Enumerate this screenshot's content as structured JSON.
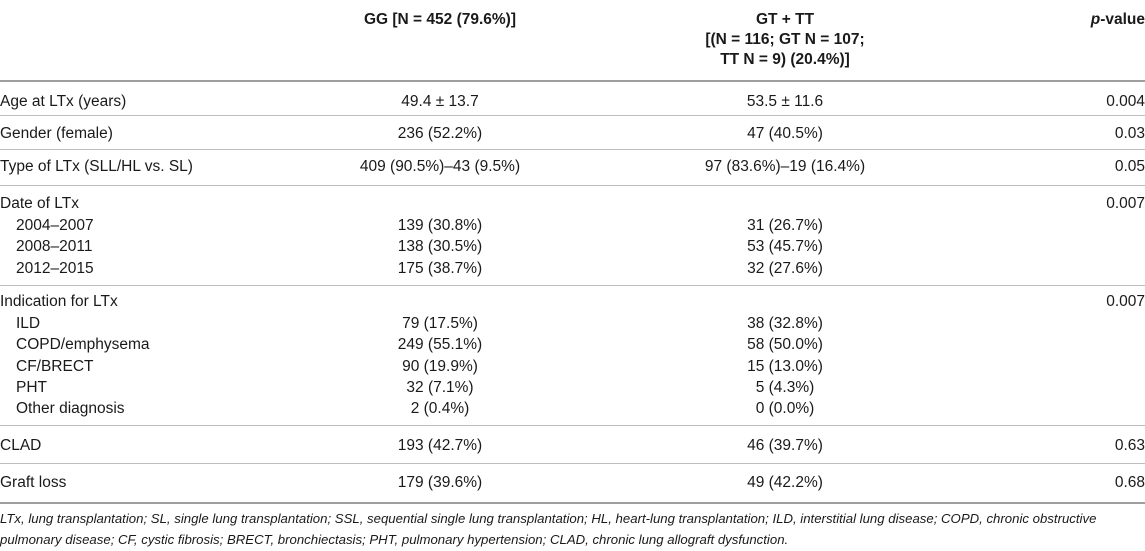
{
  "header": {
    "gg": "GG [N = 452 (79.6%)]",
    "gt_line1": "GT + TT",
    "gt_line2": "[(N = 116; GT N = 107;",
    "gt_line3": "TT N = 9) (20.4%)]",
    "p_italic": "p",
    "p_rest": "-value"
  },
  "rows": {
    "age": {
      "label": "Age at LTx (years)",
      "gg": "49.4 ± 13.7",
      "gt": "53.5 ± 11.6",
      "p": "0.004"
    },
    "gender": {
      "label": "Gender (female)",
      "gg": "236 (52.2%)",
      "gt": "47 (40.5%)",
      "p": "0.03"
    },
    "type": {
      "label": "Type of LTx (SLL/HL vs. SL)",
      "gg": "409 (90.5%)–43 (9.5%)",
      "gt": "97 (83.6%)–19 (16.4%)",
      "p": "0.05"
    },
    "date": {
      "label": "Date of LTx",
      "p": "0.007",
      "items": [
        {
          "label": "2004–2007",
          "gg": "139 (30.8%)",
          "gt": "31 (26.7%)"
        },
        {
          "label": "2008–2011",
          "gg": "138 (30.5%)",
          "gt": "53 (45.7%)"
        },
        {
          "label": "2012–2015",
          "gg": "175 (38.7%)",
          "gt": "32 (27.6%)"
        }
      ]
    },
    "indication": {
      "label": "Indication for LTx",
      "p": "0.007",
      "items": [
        {
          "label": "ILD",
          "gg": "79 (17.5%)",
          "gt": "38 (32.8%)"
        },
        {
          "label": "COPD/emphysema",
          "gg": "249 (55.1%)",
          "gt": "58 (50.0%)"
        },
        {
          "label": "CF/BRECT",
          "gg": "90 (19.9%)",
          "gt": "15 (13.0%)"
        },
        {
          "label": "PHT",
          "gg": "32 (7.1%)",
          "gt": "5 (4.3%)"
        },
        {
          "label": "Other diagnosis",
          "gg": "2 (0.4%)",
          "gt": "0 (0.0%)"
        }
      ]
    },
    "clad": {
      "label": "CLAD",
      "gg": "193 (42.7%)",
      "gt": "46 (39.7%)",
      "p": "0.63"
    },
    "graft": {
      "label": "Graft loss",
      "gg": "179 (39.6%)",
      "gt": "49 (42.2%)",
      "p": "0.68"
    }
  },
  "footnote": "LTx, lung transplantation; SL, single lung transplantation; SSL, sequential single lung transplantation; HL, heart-lung transplantation; ILD, interstitial lung disease; COPD, chronic obstructive pulmonary disease; CF, cystic fibrosis; BRECT, bronchiectasis; PHT, pulmonary hypertension; CLAD, chronic lung allograft dysfunction."
}
